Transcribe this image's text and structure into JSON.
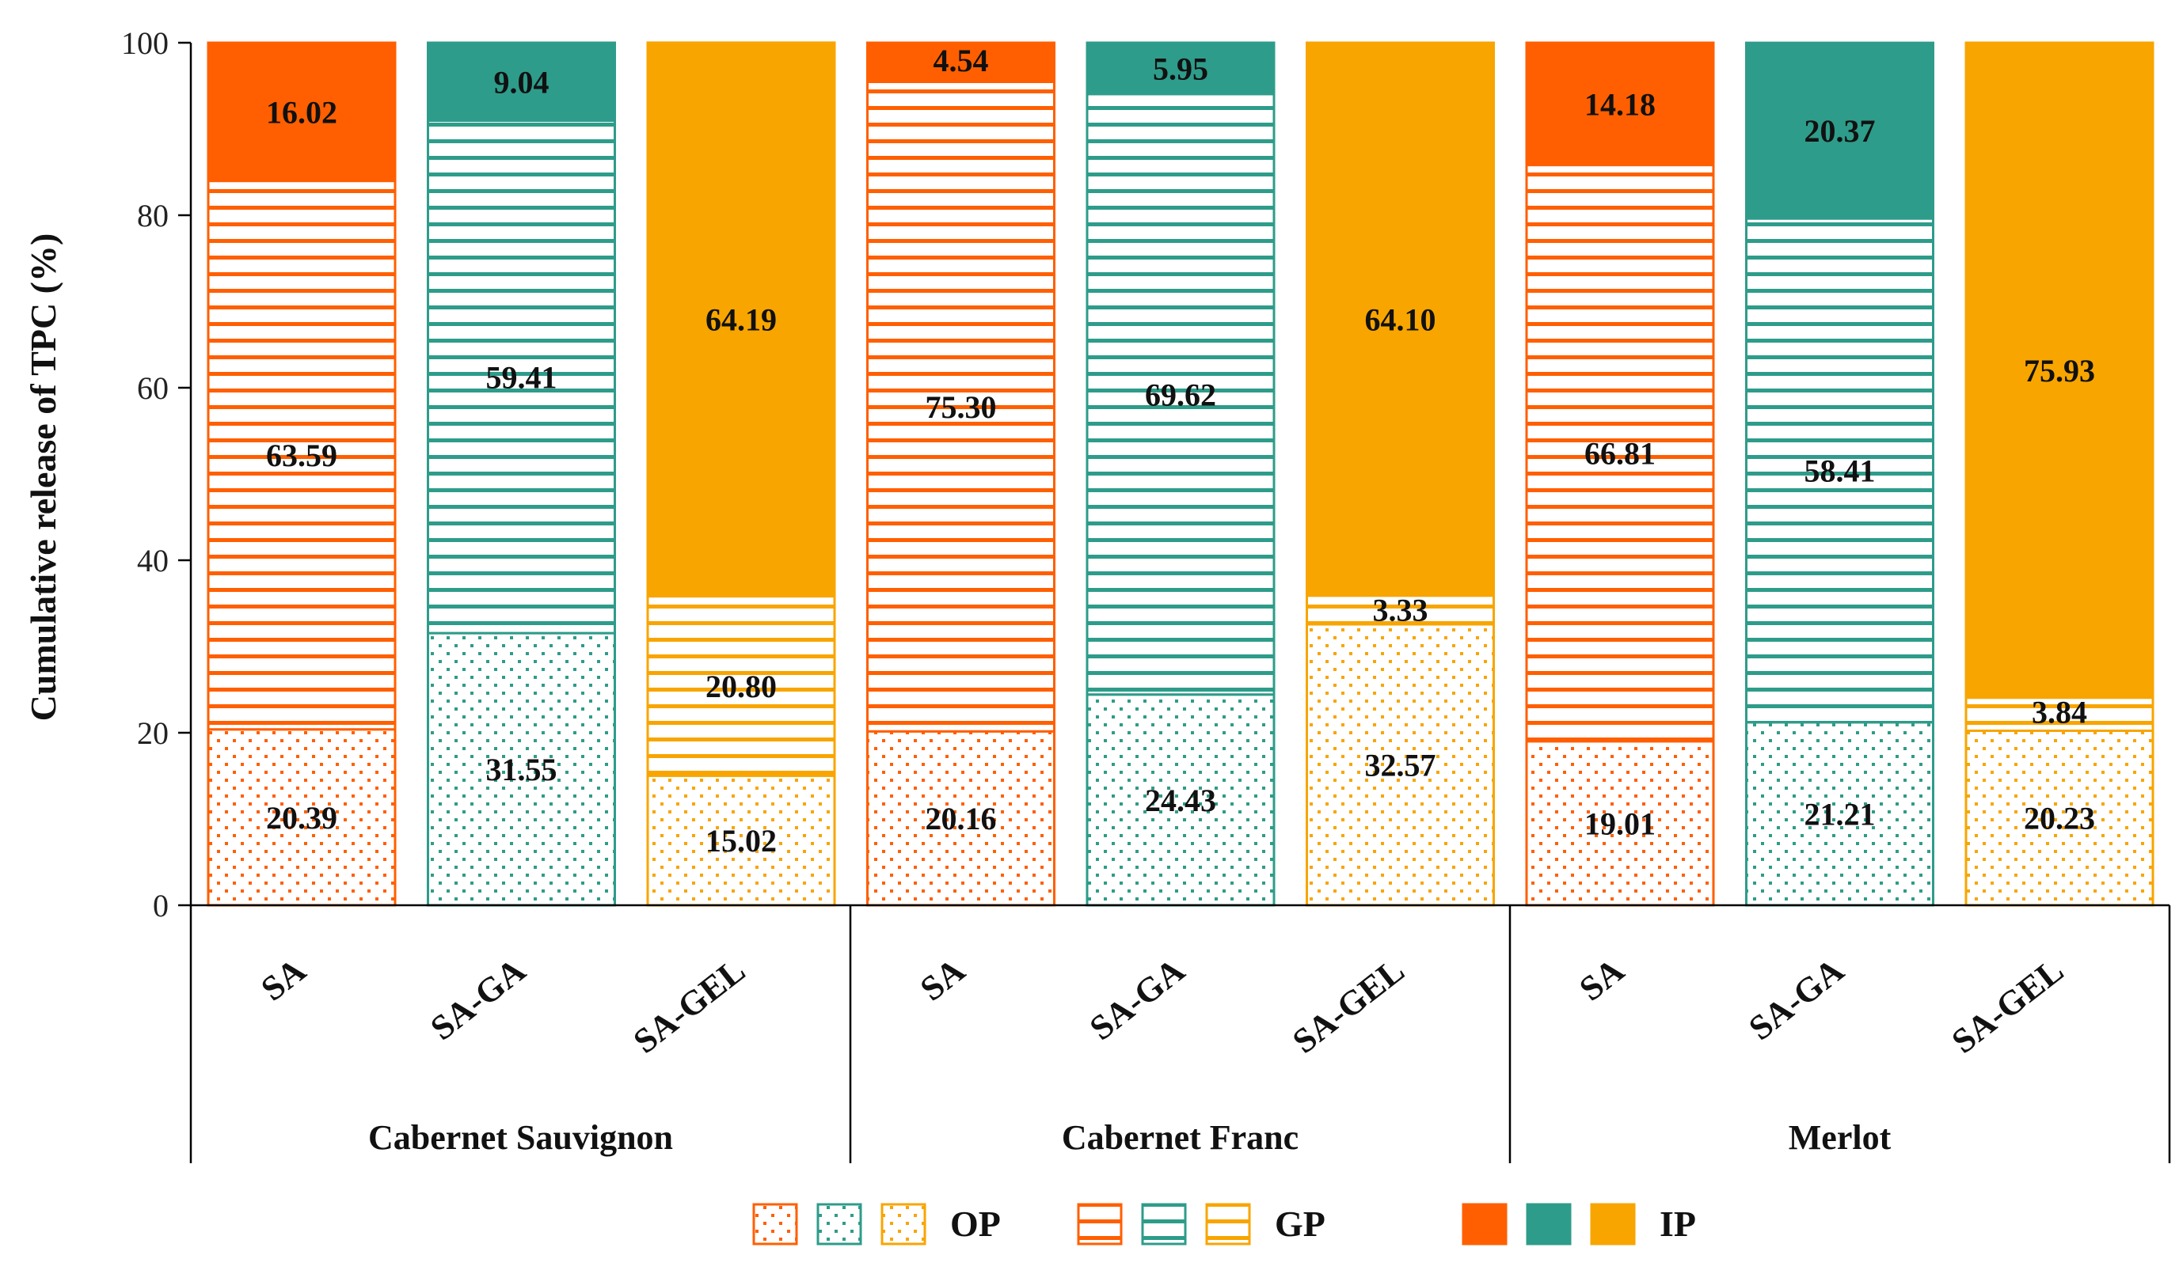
{
  "chart_data": {
    "type": "bar",
    "stacked": true,
    "title": "",
    "xlabel": "",
    "ylabel": "Cumulative release of TPC (%)",
    "ylim": [
      0,
      100
    ],
    "yticks": [
      0,
      20,
      40,
      60,
      80,
      100
    ],
    "groups": [
      {
        "name": "Cabernet Sauvignon",
        "categories": [
          "SA",
          "SA-GA",
          "SA-GEL"
        ]
      },
      {
        "name": "Cabernet Franc",
        "categories": [
          "SA",
          "SA-GA",
          "SA-GEL"
        ]
      },
      {
        "name": "Merlot",
        "categories": [
          "SA",
          "SA-GA",
          "SA-GEL"
        ]
      }
    ],
    "bars": [
      {
        "group": "Cabernet Sauvignon",
        "category": "SA",
        "color_key": "SA",
        "OP": 20.39,
        "GP": 63.59,
        "IP": 16.02
      },
      {
        "group": "Cabernet Sauvignon",
        "category": "SA-GA",
        "color_key": "SA-GA",
        "OP": 31.55,
        "GP": 59.41,
        "IP": 9.04
      },
      {
        "group": "Cabernet Sauvignon",
        "category": "SA-GEL",
        "color_key": "SA-GEL",
        "OP": 15.02,
        "GP": 20.8,
        "IP": 64.19
      },
      {
        "group": "Cabernet Franc",
        "category": "SA",
        "color_key": "SA",
        "OP": 20.16,
        "GP": 75.3,
        "IP": 4.54
      },
      {
        "group": "Cabernet Franc",
        "category": "SA-GA",
        "color_key": "SA-GA",
        "OP": 24.43,
        "GP": 69.62,
        "IP": 5.95
      },
      {
        "group": "Cabernet Franc",
        "category": "SA-GEL",
        "color_key": "SA-GEL",
        "OP": 32.57,
        "GP": 3.33,
        "IP": 64.1
      },
      {
        "group": "Merlot",
        "category": "SA",
        "color_key": "SA",
        "OP": 19.01,
        "GP": 66.81,
        "IP": 14.18
      },
      {
        "group": "Merlot",
        "category": "SA-GA",
        "color_key": "SA-GA",
        "OP": 21.21,
        "GP": 58.41,
        "IP": 20.37
      },
      {
        "group": "Merlot",
        "category": "SA-GEL",
        "color_key": "SA-GEL",
        "OP": 20.23,
        "GP": 3.84,
        "IP": 75.93
      }
    ],
    "label_text": [
      {
        "OP": "20.39",
        "GP": "63.59",
        "IP": "16.02"
      },
      {
        "OP": "31.55",
        "GP": "59.41",
        "IP": "9.04"
      },
      {
        "OP": "15.02",
        "GP": "20.80",
        "IP": "64.19"
      },
      {
        "OP": "20.16",
        "GP": "75.30",
        "IP": "4.54"
      },
      {
        "OP": "24.43",
        "GP": "69.62",
        "IP": "5.95"
      },
      {
        "OP": "32.57",
        "GP": "3.33",
        "IP": "64.10"
      },
      {
        "OP": "19.01",
        "GP": "66.81",
        "IP": "14.18"
      },
      {
        "OP": "21.21",
        "GP": "58.41",
        "IP": "20.37"
      },
      {
        "OP": "20.23",
        "GP": "3.84",
        "IP": "75.93"
      }
    ],
    "series": [
      {
        "name": "OP",
        "pattern": "dots"
      },
      {
        "name": "GP",
        "pattern": "horizontal-stripes"
      },
      {
        "name": "IP",
        "pattern": "solid"
      }
    ],
    "colors": {
      "SA": "#FF5F00",
      "SA-GA": "#2E9C8A",
      "SA-GEL": "#F8A500"
    },
    "legend": {
      "position": "bottom",
      "entries": [
        "OP",
        "GP",
        "IP"
      ]
    }
  }
}
